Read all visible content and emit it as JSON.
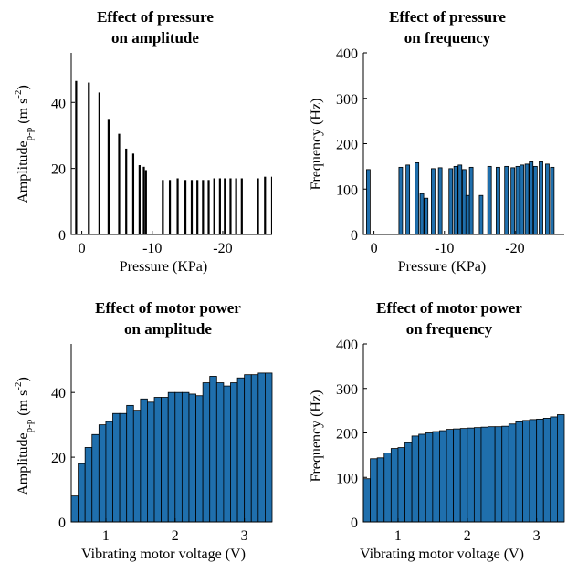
{
  "colors": {
    "bar_fill": "#1f6fad",
    "bar_edge": "#000000",
    "pressure_amp_bar": "#000000",
    "axis": "#000000"
  },
  "chart_data": [
    {
      "id": "p1",
      "type": "bar",
      "title": [
        "Effect of pressure",
        "on amplitude"
      ],
      "xlabel": "Pressure (KPa)",
      "ylabel": "Amplitude",
      "ylabel_sub": "p-p",
      "ylabel_unit": "(m s",
      "ylabel_sup": "-2",
      "ylabel_close": ")",
      "xlim": [
        1.5,
        -27
      ],
      "ylim": [
        0,
        55
      ],
      "reversed_x": true,
      "xticks": [
        0,
        -10,
        -20
      ],
      "xtick_labels": [
        "0",
        "-10",
        "-20"
      ],
      "yticks": [
        0,
        20,
        40
      ],
      "ytick_labels": [
        "0",
        "20",
        "40"
      ],
      "bar_style": "thin-black",
      "x": [
        0.8,
        -1.0,
        -2.5,
        -3.8,
        -5.3,
        -6.3,
        -7.3,
        -8.2,
        -8.8,
        -9.1,
        -11.5,
        -12.5,
        -13.6,
        -14.7,
        -15.6,
        -16.4,
        -17.2,
        -18.0,
        -18.8,
        -19.6,
        -20.3,
        -21.1,
        -21.9,
        -22.7,
        -25.0,
        -26.0,
        -27.0
      ],
      "values": [
        46.5,
        46.0,
        43.0,
        35.0,
        30.5,
        26.0,
        24.5,
        21.0,
        20.5,
        19.5,
        16.5,
        16.5,
        17.0,
        16.5,
        16.5,
        16.5,
        16.5,
        16.5,
        17.0,
        17.0,
        17.0,
        17.0,
        17.0,
        17.0,
        17.0,
        17.5,
        17.5
      ]
    },
    {
      "id": "p2",
      "type": "bar",
      "title": [
        "Effect of pressure",
        "on frequency"
      ],
      "xlabel": "Pressure (KPa)",
      "ylabel": "Frequency (Hz)",
      "xlim": [
        1.5,
        -27
      ],
      "ylim": [
        0,
        400
      ],
      "reversed_x": true,
      "xticks": [
        0,
        -10,
        -20
      ],
      "xtick_labels": [
        "0",
        "-10",
        "-20"
      ],
      "yticks": [
        0,
        100,
        200,
        300,
        400
      ],
      "ytick_labels": [
        "0",
        "100",
        "200",
        "300",
        "400"
      ],
      "bar_style": "thin-blue",
      "x": [
        0.8,
        -3.8,
        -4.8,
        -6.1,
        -6.8,
        -7.4,
        -8.4,
        -9.4,
        -10.9,
        -11.6,
        -12.2,
        -12.8,
        -13.3,
        -13.8,
        -15.2,
        -16.4,
        -17.6,
        -18.8,
        -19.7,
        -20.4,
        -21.0,
        -21.7,
        -22.3,
        -22.9,
        -23.7,
        -24.6,
        -25.3
      ],
      "values": [
        143,
        148,
        153,
        158,
        90,
        80,
        145,
        147,
        145,
        150,
        153,
        143,
        86,
        148,
        86,
        150,
        148,
        150,
        147,
        150,
        153,
        155,
        160,
        150,
        160,
        155,
        148
      ]
    },
    {
      "id": "p3",
      "type": "bar",
      "title": [
        "Effect of motor power",
        "on amplitude"
      ],
      "xlabel": "Vibrating motor voltage (V)",
      "ylabel": "Amplitude",
      "ylabel_sub": "p-p",
      "ylabel_unit": "(m s",
      "ylabel_sup": "-2",
      "ylabel_close": ")",
      "xlim": [
        0.5,
        3.4
      ],
      "ylim": [
        0,
        55
      ],
      "reversed_x": false,
      "xticks": [
        1,
        2,
        3
      ],
      "xtick_labels": [
        "1",
        "2",
        "3"
      ],
      "yticks": [
        0,
        20,
        40
      ],
      "ytick_labels": [
        "0",
        "20",
        "40"
      ],
      "bar_style": "wide-blue",
      "x_start": 0.5,
      "x_step": 0.1,
      "values": [
        8,
        18,
        23,
        27,
        30,
        31,
        33.5,
        33.5,
        36,
        34.5,
        38,
        37,
        38.5,
        38.5,
        40,
        40,
        40,
        39.5,
        39,
        43,
        45,
        43,
        42,
        43,
        44.5,
        45.5,
        45.5,
        46,
        46
      ]
    },
    {
      "id": "p4",
      "type": "bar",
      "title": [
        "Effect of motor power",
        "on frequency"
      ],
      "xlabel": "Vibrating motor voltage (V)",
      "ylabel": "Frequency (Hz)",
      "xlim": [
        0.5,
        3.4
      ],
      "ylim": [
        0,
        400
      ],
      "reversed_x": false,
      "xticks": [
        1,
        2,
        3
      ],
      "xtick_labels": [
        "1",
        "2",
        "3"
      ],
      "yticks": [
        0,
        100,
        200,
        300,
        400
      ],
      "ytick_labels": [
        "0",
        "100",
        "200",
        "300",
        "400"
      ],
      "bar_style": "wide-blue",
      "x_start": 0.5,
      "x_step": 0.1,
      "values": [
        97,
        142,
        144,
        155,
        165,
        167,
        178,
        193,
        197,
        200,
        203,
        205,
        208,
        209,
        210,
        211,
        212,
        213,
        214,
        214,
        215,
        220,
        225,
        228,
        230,
        231,
        233,
        236,
        241
      ]
    }
  ]
}
